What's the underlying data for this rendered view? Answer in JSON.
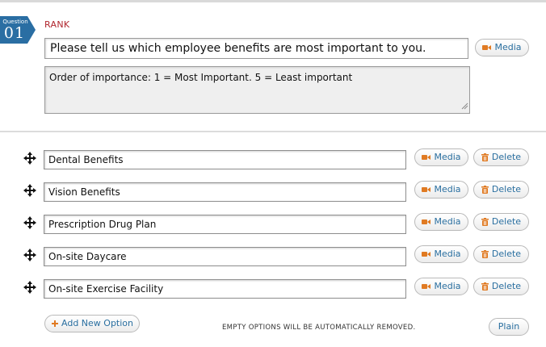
{
  "question": {
    "badge_label": "Question",
    "number": "01",
    "type": "RANK",
    "title": "Please tell us which employee benefits are most important to you.",
    "description": "Order of importance: 1 = Most Important. 5 = Least important",
    "media_label": "Media"
  },
  "options": [
    {
      "label": "Dental Benefits",
      "media_label": "Media",
      "delete_label": "Delete"
    },
    {
      "label": "Vision Benefits",
      "media_label": "Media",
      "delete_label": "Delete"
    },
    {
      "label": "Prescription Drug Plan",
      "media_label": "Media",
      "delete_label": "Delete"
    },
    {
      "label": "On-site Daycare",
      "media_label": "Media",
      "delete_label": "Delete"
    },
    {
      "label": "On-site Exercise Facility",
      "media_label": "Media",
      "delete_label": "Delete"
    }
  ],
  "footer": {
    "add_option_label": "Add New Option",
    "note": "EMPTY OPTIONS WILL BE AUTOMATICALLY REMOVED.",
    "plain_label": "Plain"
  },
  "colors": {
    "badge": "#2a6ea3",
    "type_label": "#b0262e",
    "link_text": "#2a6fa0",
    "icon_orange": "#e07a22"
  },
  "icons": {
    "media": "video-camera-icon",
    "delete": "trash-icon",
    "drag": "move-arrows-icon",
    "add": "plus-icon"
  }
}
